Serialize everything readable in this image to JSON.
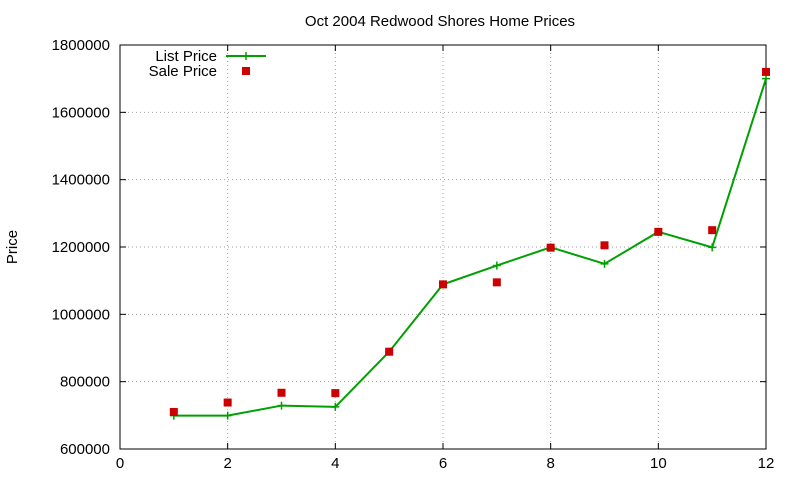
{
  "chart_data": {
    "type": "line",
    "title": "Oct 2004 Redwood Shores Home Prices",
    "xlabel": "",
    "ylabel": "Price",
    "xlim": [
      0,
      12
    ],
    "ylim": [
      600000,
      1800000
    ],
    "x_ticks": [
      0,
      2,
      4,
      6,
      8,
      10,
      12
    ],
    "y_ticks": [
      600000,
      800000,
      1000000,
      1200000,
      1400000,
      1600000,
      1800000
    ],
    "grid": true,
    "legend_position": "top-left",
    "series": [
      {
        "name": "List Price",
        "style": "line-with-plus-markers",
        "color": "#00a000",
        "x": [
          1,
          2,
          3,
          4,
          5,
          6,
          7,
          8,
          9,
          10,
          11,
          12
        ],
        "values": [
          699000,
          699000,
          729000,
          725000,
          889000,
          1089000,
          1145000,
          1199000,
          1150000,
          1245000,
          1199000,
          1700000
        ]
      },
      {
        "name": "Sale Price",
        "style": "square-markers",
        "color": "#cc0000",
        "x": [
          1,
          2,
          3,
          4,
          5,
          6,
          7,
          8,
          9,
          10,
          11,
          12
        ],
        "values": [
          710000,
          738000,
          767000,
          766000,
          889000,
          1089000,
          1095000,
          1198000,
          1205000,
          1245000,
          1250000,
          1720000
        ]
      }
    ]
  }
}
